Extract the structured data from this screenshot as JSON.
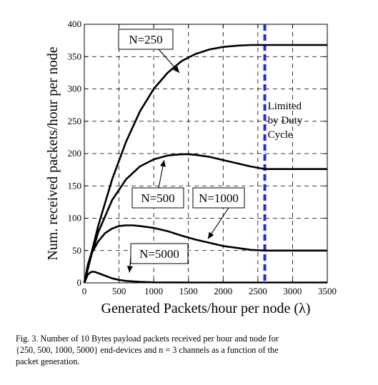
{
  "chart_data": {
    "type": "line",
    "xlabel": "Generated Packets/hour per node (λ)",
    "ylabel": "Num. received packets/hour per node",
    "xlim": [
      0,
      3500
    ],
    "ylim": [
      0,
      400
    ],
    "xticks": [
      "0",
      "500",
      "1000",
      "1500",
      "2000",
      "2500",
      "3000",
      "3500"
    ],
    "yticks": [
      "0",
      "50",
      "100",
      "150",
      "200",
      "250",
      "300",
      "350",
      "400"
    ],
    "grid": true,
    "series": [
      {
        "name": "N=250",
        "x": [
          0,
          100,
          200,
          400,
          600,
          800,
          1000,
          1200,
          1400,
          1600,
          1800,
          2000,
          2200,
          2400,
          2600,
          2800,
          3000,
          3500
        ],
        "y": [
          0,
          45,
          88,
          160,
          218,
          265,
          300,
          325,
          343,
          354,
          361,
          365,
          367,
          368,
          368,
          368,
          368,
          368
        ]
      },
      {
        "name": "N=500",
        "x": [
          0,
          100,
          200,
          400,
          600,
          800,
          1000,
          1200,
          1400,
          1500,
          1600,
          1800,
          2000,
          2200,
          2400,
          2600,
          2800,
          3000,
          3500
        ],
        "y": [
          0,
          42,
          78,
          128,
          160,
          180,
          191,
          197,
          199,
          199,
          198,
          195,
          190,
          185,
          180,
          176,
          176,
          176,
          176
        ]
      },
      {
        "name": "N=1000",
        "x": [
          0,
          50,
          100,
          200,
          300,
          400,
          500,
          600,
          700,
          800,
          1000,
          1200,
          1400,
          1600,
          1800,
          2000,
          2200,
          2400,
          2600,
          3000,
          3500
        ],
        "y": [
          0,
          28,
          45,
          64,
          77,
          84,
          88,
          89,
          89,
          88,
          85,
          80,
          73,
          67,
          62,
          57,
          54,
          51,
          50,
          50,
          50
        ]
      },
      {
        "name": "N=5000",
        "x": [
          0,
          50,
          100,
          150,
          200,
          300,
          400,
          500,
          600,
          800,
          1000,
          1500,
          2000,
          2600,
          3000,
          3500
        ],
        "y": [
          0,
          13,
          17,
          17,
          15,
          11,
          7,
          4.5,
          3,
          1.5,
          0.8,
          0.5,
          0.5,
          0.5,
          0.5,
          0.5
        ]
      }
    ],
    "annotations": [
      {
        "label": "N=250",
        "x": 1370,
        "y": 325
      },
      {
        "label": "N=500",
        "x": 1150,
        "y": 190
      },
      {
        "label": "N=1000",
        "x": 1780,
        "y": 68
      },
      {
        "label": "N=5000",
        "x": 650,
        "y": 16
      }
    ],
    "duty_cycle_line": {
      "x": 2600,
      "color": "#1e2fd6",
      "label_lines": [
        "Limited",
        "by Duty",
        "Cycle"
      ]
    },
    "line_color": "#000000"
  },
  "caption": {
    "lines": [
      "Fig. 3.  Number of 10 Bytes payload packets received per hour and node for",
      "{250, 500, 1000, 5000} end-devices and n = 3 channels as a function of the",
      "packet generation."
    ]
  }
}
